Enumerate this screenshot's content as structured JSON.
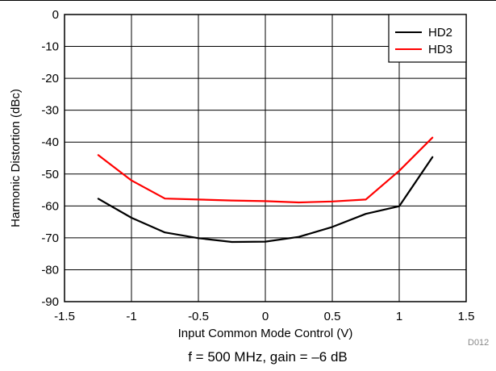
{
  "chart_data": {
    "type": "line",
    "title": "",
    "xlabel": "Input Common Mode Control (V)",
    "ylabel": "Harmonic Distortion (dBc)",
    "xlim": [
      -1.5,
      1.5
    ],
    "ylim": [
      -90,
      0
    ],
    "xticks": [
      -1.5,
      -1,
      -0.5,
      0,
      0.5,
      1,
      1.5
    ],
    "xtick_labels": [
      "-1.5",
      "-1",
      "-0.5",
      "0",
      "0.5",
      "1",
      "1.5"
    ],
    "yticks": [
      0,
      -10,
      -20,
      -30,
      -40,
      -50,
      -60,
      -70,
      -80,
      -90
    ],
    "ytick_labels": [
      "0",
      "-10",
      "-20",
      "-30",
      "-40",
      "-50",
      "-60",
      "-70",
      "-80",
      "-90"
    ],
    "grid": true,
    "legend_position": "top-right",
    "series": [
      {
        "name": "HD2",
        "color": "#000000",
        "x": [
          -1.25,
          -1,
          -0.75,
          -0.5,
          -0.25,
          0,
          0.25,
          0.5,
          0.75,
          1,
          1.25
        ],
        "y": [
          -57.7,
          -63.7,
          -68.3,
          -70.1,
          -71.3,
          -71.2,
          -69.7,
          -66.6,
          -62.5,
          -60.1,
          -44.6
        ]
      },
      {
        "name": "HD3",
        "color": "#ff0000",
        "x": [
          -1.25,
          -1,
          -0.75,
          -0.5,
          -0.25,
          0,
          0.25,
          0.5,
          0.75,
          1,
          1.25
        ],
        "y": [
          -44.0,
          -52.0,
          -57.7,
          -58.0,
          -58.3,
          -58.5,
          -58.9,
          -58.6,
          -58.0,
          -49.0,
          -38.5
        ]
      }
    ],
    "figure_id": "D012",
    "caption": "f = 500 MHz, gain = –6 dB"
  }
}
